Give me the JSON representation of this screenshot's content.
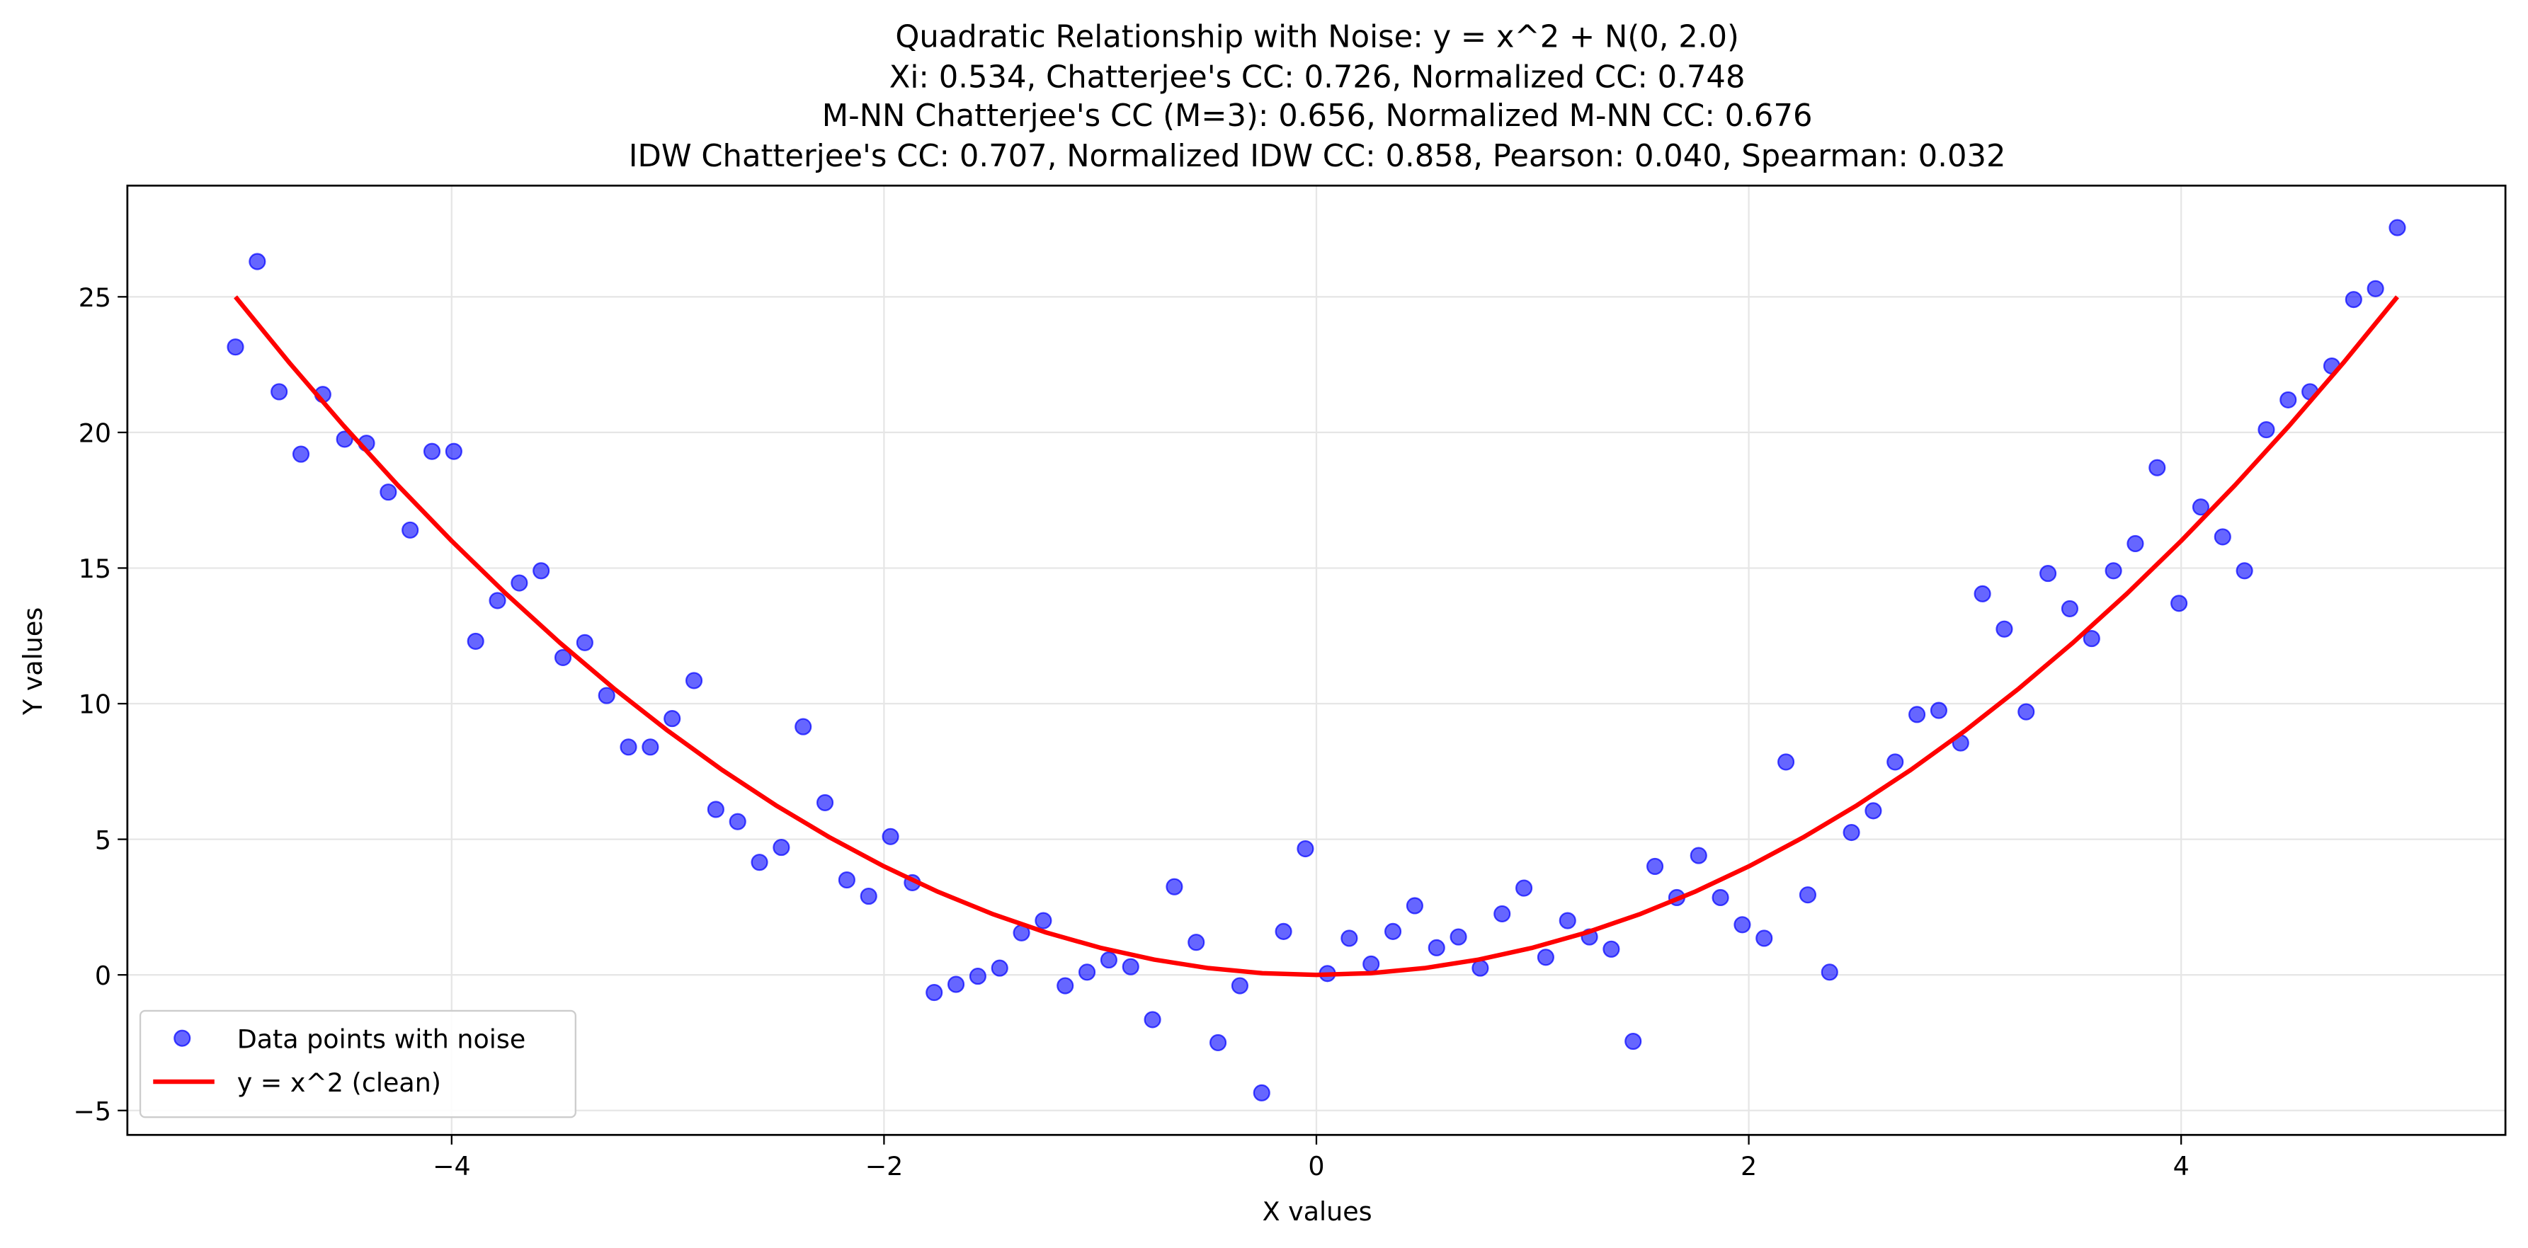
{
  "chart_data": {
    "type": "scatter",
    "title": [
      "Quadratic Relationship with Noise: y = x^2 + N(0, 2.0)",
      "Xi: 0.534, Chatterjee's CC: 0.726, Normalized CC: 0.748",
      "M-NN Chatterjee's CC (M=3): 0.656, Normalized M-NN CC: 0.676",
      "IDW Chatterjee's CC: 0.707, Normalized IDW CC: 0.858, Pearson: 0.040, Spearman: 0.032"
    ],
    "xlabel": "X values",
    "ylabel": "Y values",
    "xlim": [
      -5.5,
      5.5
    ],
    "ylim": [
      -5.9,
      29.1
    ],
    "xticks": [
      {
        "value": -4,
        "label": "−4"
      },
      {
        "value": -2,
        "label": "−2"
      },
      0,
      2,
      4
    ],
    "yticks": [
      {
        "value": -5,
        "label": "−5"
      },
      0,
      5,
      10,
      15,
      20,
      25
    ],
    "grid": true,
    "legend": "lower left",
    "series": [
      {
        "name": "Data points with noise",
        "type": "scatter",
        "color": "#0000ff",
        "x": [
          -5,
          -4.899,
          -4.798,
          -4.697,
          -4.596,
          -4.495,
          -4.394,
          -4.293,
          -4.192,
          -4.091,
          -3.99,
          -3.889,
          -3.788,
          -3.687,
          -3.586,
          -3.485,
          -3.384,
          -3.283,
          -3.182,
          -3.081,
          -2.98,
          -2.879,
          -2.778,
          -2.677,
          -2.576,
          -2.475,
          -2.374,
          -2.273,
          -2.172,
          -2.071,
          -1.97,
          -1.869,
          -1.768,
          -1.667,
          -1.566,
          -1.465,
          -1.364,
          -1.263,
          -1.162,
          -1.061,
          -0.96,
          -0.859,
          -0.758,
          -0.657,
          -0.556,
          -0.455,
          -0.354,
          -0.253,
          -0.152,
          -0.051,
          0.051,
          0.152,
          0.253,
          0.354,
          0.455,
          0.556,
          0.657,
          0.758,
          0.859,
          0.96,
          1.061,
          1.162,
          1.263,
          1.364,
          1.465,
          1.566,
          1.667,
          1.768,
          1.869,
          1.97,
          2.071,
          2.172,
          2.273,
          2.374,
          2.475,
          2.576,
          2.677,
          2.778,
          2.879,
          2.98,
          3.081,
          3.182,
          3.283,
          3.384,
          3.485,
          3.586,
          3.687,
          3.788,
          3.889,
          3.99,
          4.091,
          4.192,
          4.293,
          4.394,
          4.495,
          4.596,
          4.697,
          4.798,
          4.899,
          5
        ],
        "values": [
          23.15,
          26.3,
          21.5,
          19.2,
          21.4,
          19.75,
          19.6,
          17.8,
          16.4,
          19.3,
          19.3,
          12.3,
          13.8,
          14.45,
          14.9,
          11.7,
          12.25,
          10.3,
          8.4,
          8.4,
          9.45,
          10.85,
          6.1,
          5.65,
          4.15,
          4.7,
          9.15,
          6.35,
          3.5,
          2.9,
          5.1,
          3.4,
          -0.65,
          -0.35,
          -0.05,
          0.25,
          1.55,
          2.0,
          -0.4,
          0.1,
          0.55,
          0.3,
          -1.65,
          3.25,
          1.2,
          -2.5,
          -0.4,
          -4.35,
          1.6,
          4.65,
          0.05,
          1.35,
          0.4,
          1.6,
          2.55,
          1.0,
          1.4,
          0.25,
          2.25,
          3.2,
          0.65,
          2.0,
          1.4,
          0.95,
          -2.45,
          4.0,
          2.85,
          4.4,
          2.85,
          1.85,
          1.35,
          7.85,
          2.95,
          0.1,
          5.25,
          6.05,
          7.85,
          9.6,
          9.75,
          8.55,
          14.05,
          12.75,
          9.7,
          14.8,
          13.5,
          12.4,
          14.9,
          15.9,
          18.7,
          13.7,
          17.25,
          16.15,
          14.9,
          20.1,
          21.2,
          21.5,
          22.45,
          24.9,
          25.3,
          27.55
        ]
      },
      {
        "name": "y = x^2 (clean)",
        "type": "line",
        "color": "#ff0000",
        "x": [
          -5,
          -4.75,
          -4.5,
          -4.25,
          -4,
          -3.75,
          -3.5,
          -3.25,
          -3,
          -2.75,
          -2.5,
          -2.25,
          -2,
          -1.75,
          -1.5,
          -1.25,
          -1,
          -0.75,
          -0.5,
          -0.25,
          0,
          0.25,
          0.5,
          0.75,
          1,
          1.25,
          1.5,
          1.75,
          2,
          2.25,
          2.5,
          2.75,
          3,
          3.25,
          3.5,
          3.75,
          4,
          4.25,
          4.5,
          4.75,
          5
        ],
        "values": [
          25,
          22.5625,
          20.25,
          18.0625,
          16,
          14.0625,
          12.25,
          10.5625,
          9,
          7.5625,
          6.25,
          5.0625,
          4,
          3.0625,
          2.25,
          1.5625,
          1,
          0.5625,
          0.25,
          0.0625,
          0,
          0.0625,
          0.25,
          0.5625,
          1,
          1.5625,
          2.25,
          3.0625,
          4,
          5.0625,
          6.25,
          7.5625,
          9,
          10.5625,
          12.25,
          14.0625,
          16,
          18.0625,
          20.25,
          22.5625,
          25
        ]
      }
    ]
  }
}
